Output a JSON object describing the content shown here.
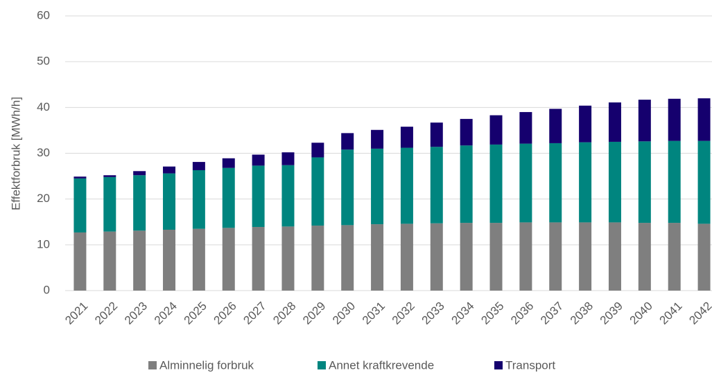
{
  "chart_data": {
    "type": "bar",
    "stacked": true,
    "y_label": "Effektforbruk [MWh/h]",
    "categories": [
      "2021",
      "2022",
      "2023",
      "2024",
      "2025",
      "2026",
      "2027",
      "2028",
      "2029",
      "2030",
      "2031",
      "2032",
      "2033",
      "2034",
      "2035",
      "2036",
      "2037",
      "2038",
      "2039",
      "2040",
      "2041",
      "2042"
    ],
    "series": [
      {
        "name": "Alminnelig forbruk",
        "color": "#7f7f7f",
        "values": [
          12.7,
          12.9,
          13.1,
          13.3,
          13.5,
          13.7,
          13.9,
          14.0,
          14.2,
          14.3,
          14.5,
          14.6,
          14.7,
          14.8,
          14.8,
          14.9,
          14.9,
          14.9,
          14.9,
          14.8,
          14.8,
          14.6
        ]
      },
      {
        "name": "Annet kraftkrevende",
        "color": "#00857f",
        "values": [
          11.8,
          11.9,
          12.1,
          12.3,
          12.8,
          13.1,
          13.4,
          13.4,
          14.9,
          16.5,
          16.5,
          16.6,
          16.7,
          16.9,
          17.1,
          17.2,
          17.3,
          17.5,
          17.6,
          17.8,
          17.9,
          18.1
        ]
      },
      {
        "name": "Transport",
        "color": "#15006e",
        "values": [
          0.4,
          0.4,
          0.9,
          1.5,
          1.8,
          2.1,
          2.4,
          2.8,
          3.2,
          3.6,
          4.1,
          4.6,
          5.3,
          5.8,
          6.4,
          6.9,
          7.5,
          8.0,
          8.6,
          9.1,
          9.2,
          9.3
        ]
      }
    ],
    "ylim": [
      0,
      60
    ],
    "yticks": [
      0,
      10,
      20,
      30,
      40,
      50,
      60
    ],
    "grid": true,
    "legend": "bottom"
  }
}
